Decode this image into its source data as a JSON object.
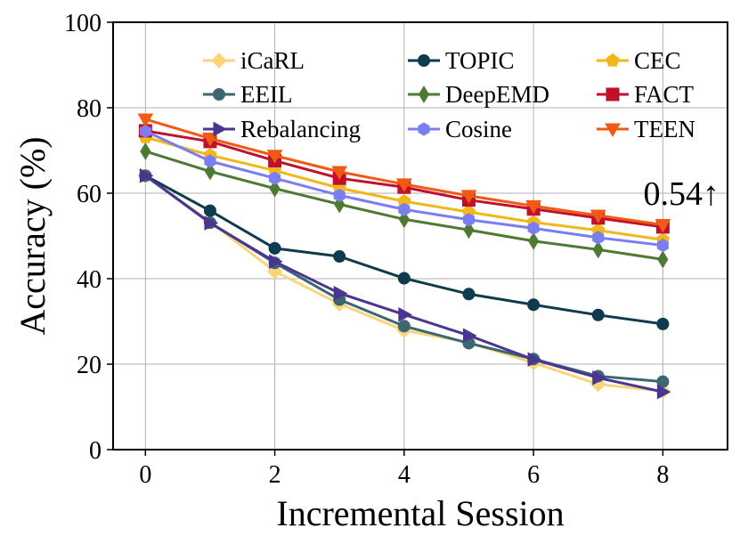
{
  "chart_data": {
    "type": "line",
    "title": "",
    "xlabel": "Incremental Session",
    "ylabel": "Accuracy (%)",
    "x": [
      0,
      1,
      2,
      3,
      4,
      5,
      6,
      7,
      8
    ],
    "xlim": [
      -0.5,
      9.0
    ],
    "ylim": [
      0,
      100
    ],
    "xticks": [
      0,
      2,
      4,
      6,
      8
    ],
    "yticks": [
      0,
      20,
      40,
      60,
      80,
      100
    ],
    "grid": true,
    "legend_position": "top",
    "series": [
      {
        "name": "iCaRL",
        "color": "#f9d479",
        "marker": "diamond",
        "values": [
          64.1,
          53.3,
          41.7,
          34.1,
          27.9,
          25.1,
          20.3,
          15.3,
          13.7
        ]
      },
      {
        "name": "TOPIC",
        "color": "#0f3b4e",
        "marker": "circle",
        "values": [
          64.1,
          55.9,
          47.1,
          45.2,
          40.1,
          36.4,
          33.9,
          31.5,
          29.4
        ]
      },
      {
        "name": "CEC",
        "color": "#f2b71b",
        "marker": "pentagon",
        "values": [
          73.1,
          68.9,
          65.3,
          61.2,
          58.1,
          55.6,
          53.2,
          51.3,
          49.1
        ]
      },
      {
        "name": "EEIL",
        "color": "#3c6670",
        "marker": "circle",
        "values": [
          64.1,
          53.1,
          43.7,
          35.1,
          28.9,
          24.9,
          21.2,
          17.2,
          15.9
        ]
      },
      {
        "name": "DeepEMD",
        "color": "#4e7a31",
        "marker": "thin-diamond",
        "values": [
          69.8,
          65.1,
          61.1,
          57.4,
          53.9,
          51.4,
          48.8,
          46.8,
          44.5
        ]
      },
      {
        "name": "FACT",
        "color": "#c0102c",
        "marker": "square",
        "values": [
          74.6,
          72.1,
          67.6,
          63.5,
          61.4,
          58.4,
          56.3,
          54.2,
          52.1
        ]
      },
      {
        "name": "Rebalancing",
        "color": "#4a3590",
        "marker": "triangle-right",
        "values": [
          64.1,
          53.0,
          44.0,
          36.6,
          31.6,
          26.7,
          21.1,
          16.8,
          13.5
        ]
      },
      {
        "name": "Cosine",
        "color": "#7b7ef0",
        "marker": "hexagon",
        "values": [
          74.5,
          67.5,
          63.5,
          59.5,
          56.2,
          53.8,
          51.8,
          49.6,
          47.8
        ]
      },
      {
        "name": "TEEN",
        "color": "#f05a14",
        "marker": "triangle-down",
        "values": [
          77.3,
          72.8,
          68.8,
          65.0,
          62.1,
          59.4,
          57.0,
          54.8,
          52.6
        ]
      }
    ],
    "annotation": "0.54↑"
  }
}
